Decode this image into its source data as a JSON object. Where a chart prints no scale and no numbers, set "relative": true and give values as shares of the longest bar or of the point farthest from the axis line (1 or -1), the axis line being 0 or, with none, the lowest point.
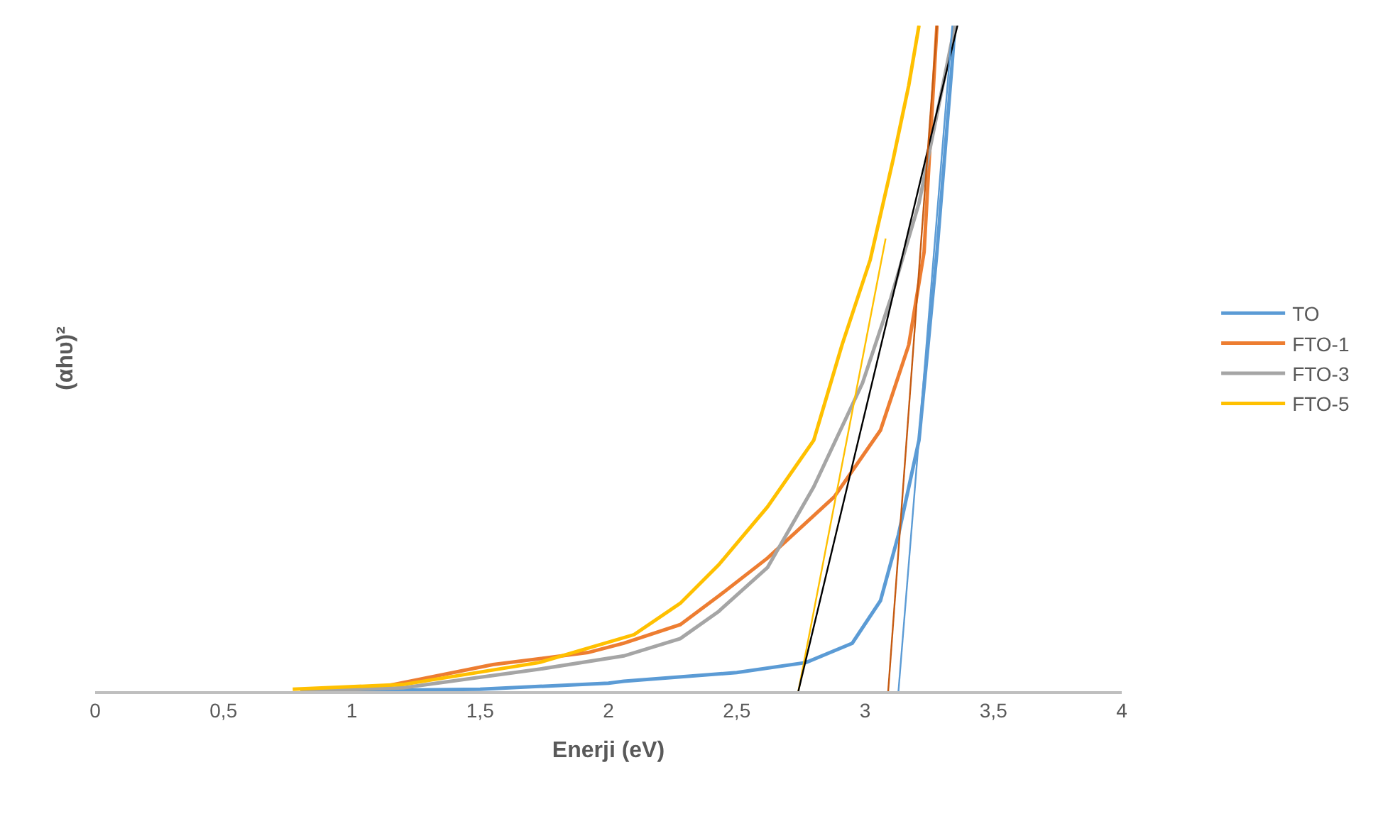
{
  "chart_data": {
    "type": "line",
    "relative": true,
    "xlabel": "Enerji (eV)",
    "ylabel": "(αhυ)²",
    "xlim": [
      0,
      4
    ],
    "xticks": [
      0,
      {
        "value": 0.5,
        "label": "0,5"
      },
      1,
      {
        "value": 1.5,
        "label": "1,5"
      },
      2,
      {
        "value": 2.5,
        "label": "2,5"
      },
      3,
      {
        "value": 3.5,
        "label": "3,5"
      },
      4
    ],
    "grid": false,
    "legend": "right",
    "marker": "none",
    "line_style": "solid",
    "series": [
      {
        "name": "TO",
        "color": "#5b9bd5",
        "x": [
          0.87,
          1.5,
          2.0,
          2.06,
          2.5,
          2.77,
          2.95,
          3.06,
          3.13,
          3.21,
          3.28,
          3.34,
          3.35
        ],
        "values": [
          0,
          0.003,
          0.012,
          0.015,
          0.028,
          0.043,
          0.072,
          0.136,
          0.235,
          0.377,
          0.66,
          0.947,
          1.0
        ]
      },
      {
        "name": "FTO-1",
        "color": "#ed7d31",
        "x": [
          0.8,
          1.1,
          1.55,
          1.92,
          2.06,
          2.28,
          2.43,
          2.62,
          2.88,
          3.06,
          3.17,
          3.23,
          3.25,
          3.28
        ],
        "values": [
          0,
          0.005,
          0.04,
          0.058,
          0.072,
          0.1,
          0.143,
          0.2,
          0.292,
          0.392,
          0.52,
          0.66,
          0.8,
          1.0
        ]
      },
      {
        "name": "FTO-3",
        "color": "#a5a5a5",
        "x": [
          0.8,
          1.2,
          1.73,
          2.06,
          2.28,
          2.43,
          2.62,
          2.8,
          2.99,
          3.1,
          3.21,
          3.35
        ],
        "values": [
          0,
          0.005,
          0.033,
          0.053,
          0.079,
          0.12,
          0.186,
          0.307,
          0.463,
          0.59,
          0.733,
          1.0
        ]
      },
      {
        "name": "FTO-5",
        "color": "#ffc000",
        "x": [
          0.77,
          1.2,
          1.73,
          2.1,
          2.28,
          2.43,
          2.62,
          2.8,
          2.91,
          3.02,
          3.11,
          3.17,
          3.21
        ],
        "values": [
          0.003,
          0.01,
          0.043,
          0.085,
          0.132,
          0.19,
          0.277,
          0.377,
          0.52,
          0.648,
          0.8,
          0.91,
          1.0
        ]
      },
      {
        "type": "line",
        "color": "#ffc000",
        "x": [
          2.74,
          3.08
        ],
        "values": [
          0,
          0.68
        ]
      },
      {
        "type": "line",
        "color": "#000000",
        "x": [
          2.74,
          3.36
        ],
        "values": [
          0,
          1.0
        ]
      },
      {
        "type": "line",
        "color": "#c55a11",
        "x": [
          3.09,
          3.28
        ],
        "values": [
          0,
          1.0
        ]
      },
      {
        "type": "line",
        "color": "#5b9bd5",
        "x": [
          3.13,
          3.34
        ],
        "values": [
          0,
          1.0
        ]
      }
    ]
  }
}
